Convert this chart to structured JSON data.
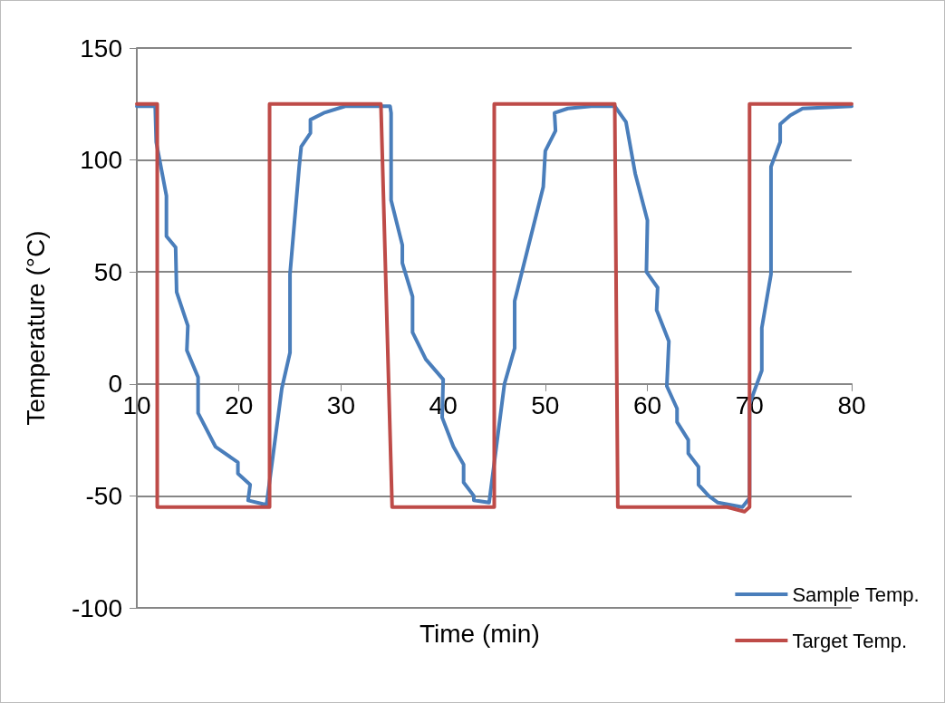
{
  "chart_data": {
    "type": "line",
    "xlabel": "Time (min)",
    "ylabel": "Temperature (°C)",
    "xlim": [
      10,
      80
    ],
    "xticks": [
      10,
      20,
      30,
      40,
      50,
      60,
      70,
      80
    ],
    "ylim": [
      -100,
      150
    ],
    "yticks": [
      -100,
      -50,
      0,
      50,
      100,
      150
    ],
    "grid": "y",
    "legend": "bottom right",
    "marker": "none",
    "line_style": "solid",
    "series": [
      {
        "name": "Sample Temp.",
        "color": "#4a7ebb",
        "x": [
          10,
          11.8,
          11.9,
          12.9,
          12.9,
          13.8,
          13.9,
          15.0,
          14.9,
          16.0,
          16.0,
          17.7,
          19.9,
          19.9,
          21.1,
          20.9,
          22.7,
          24.2,
          25.0,
          25.0,
          25.9,
          26.1,
          27.0,
          27.0,
          28.3,
          30.4,
          34.8,
          34.9,
          34.9,
          36.0,
          36.0,
          37.0,
          37.0,
          38.3,
          40.0,
          39.9,
          41.0,
          42.0,
          42.0,
          43.0,
          43.0,
          44.5,
          46.0,
          47.0,
          47.0,
          49.8,
          50.0,
          51.0,
          50.9,
          52.2,
          54.5,
          56.8,
          57.9,
          58.8,
          60.0,
          59.9,
          61.0,
          60.9,
          62.1,
          61.9,
          62.9,
          62.9,
          64.0,
          64.0,
          65.0,
          65.0,
          66.0,
          66.9,
          69.3,
          70.0,
          70.0,
          71.2,
          71.2,
          72.1,
          72.1,
          73.0,
          73.0,
          74.0,
          75.2,
          80
        ],
        "values": [
          124,
          124,
          108,
          84,
          66,
          61,
          41,
          26,
          15,
          3,
          -13,
          -28,
          -35,
          -40,
          -45,
          -52,
          -54,
          -2,
          14,
          49,
          97,
          106,
          112,
          118,
          121,
          124,
          124,
          121,
          82,
          62,
          54,
          39,
          23,
          11,
          2,
          -15,
          -28,
          -36,
          -44,
          -50,
          -52,
          -53,
          0,
          16,
          37,
          88,
          104,
          113,
          121,
          123,
          124,
          124,
          117,
          94,
          73,
          50,
          43,
          33,
          19,
          -1,
          -11,
          -17,
          -25,
          -31,
          -37,
          -45,
          -50,
          -53,
          -55,
          -51,
          -9,
          6,
          25,
          49,
          97,
          108,
          116,
          120,
          123,
          124
        ]
      },
      {
        "name": "Target Temp.",
        "color": "#be4b48",
        "x": [
          10,
          12,
          12,
          23,
          23,
          33.9,
          35,
          45,
          45,
          56.8,
          57.1,
          67.8,
          69.5,
          70,
          70,
          80
        ],
        "values": [
          125,
          125,
          -55,
          -55,
          125,
          125,
          -55,
          -55,
          125,
          125,
          -55,
          -55,
          -57,
          -55,
          125,
          125
        ]
      }
    ]
  }
}
